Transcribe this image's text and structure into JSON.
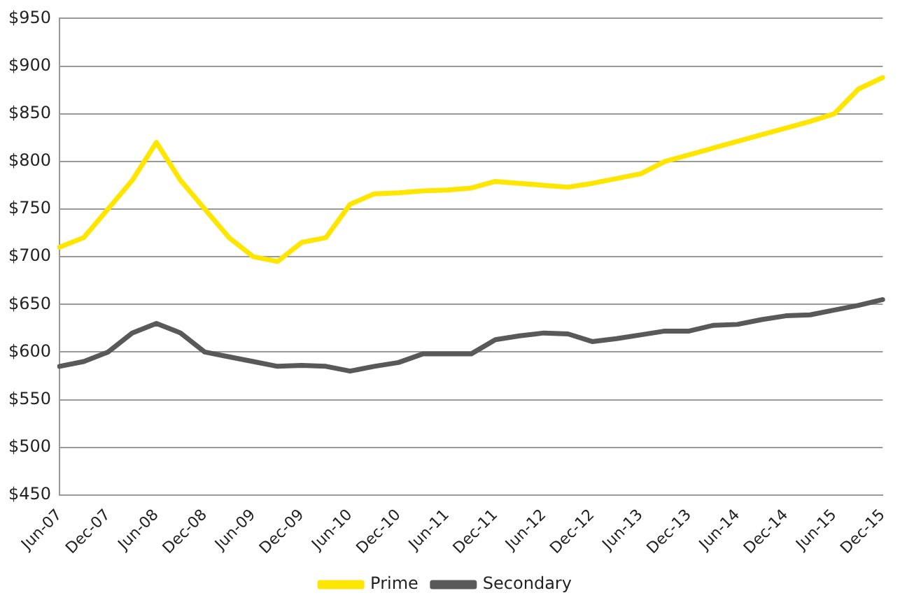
{
  "chart_data": {
    "type": "line",
    "categories": [
      "Jun-07",
      null,
      "Dec-07",
      null,
      "Jun-08",
      null,
      "Dec-08",
      null,
      "Jun-09",
      null,
      "Dec-09",
      null,
      "Jun-10",
      null,
      "Dec-10",
      null,
      "Jun-11",
      null,
      "Dec-11",
      null,
      "Jun-12",
      null,
      "Dec-12",
      null,
      "Jun-13",
      null,
      "Dec-13",
      null,
      "Jun-14",
      null,
      "Dec-14",
      null,
      "Jun-15",
      null,
      "Dec-15"
    ],
    "series": [
      {
        "name": "Prime",
        "color": "#ffe600",
        "values": [
          710,
          720,
          750,
          780,
          820,
          780,
          750,
          720,
          700,
          695,
          715,
          720,
          755,
          766,
          767,
          769,
          770,
          772,
          779,
          777,
          775,
          773,
          777,
          782,
          787,
          800,
          807,
          814,
          821,
          828,
          835,
          842,
          850,
          876,
          888
        ]
      },
      {
        "name": "Secondary",
        "color": "#595959",
        "values": [
          585,
          590,
          600,
          620,
          630,
          620,
          600,
          595,
          590,
          585,
          586,
          585,
          580,
          585,
          589,
          598,
          598,
          598,
          613,
          617,
          620,
          619,
          611,
          614,
          618,
          622,
          622,
          628,
          629,
          634,
          638,
          639,
          644,
          649,
          655
        ]
      }
    ],
    "ylim": [
      450,
      950
    ],
    "yticks": [
      {
        "value": 450,
        "label": "$450"
      },
      {
        "value": 500,
        "label": "$500"
      },
      {
        "value": 550,
        "label": "$550"
      },
      {
        "value": 600,
        "label": "$600"
      },
      {
        "value": 650,
        "label": "$650"
      },
      {
        "value": 700,
        "label": "$700"
      },
      {
        "value": 750,
        "label": "$750"
      },
      {
        "value": 800,
        "label": "$800"
      },
      {
        "value": 850,
        "label": "$850"
      },
      {
        "value": 900,
        "label": "$900"
      },
      {
        "value": 950,
        "label": "$950"
      }
    ],
    "grid": "y",
    "legend": "bottom",
    "marker": "none",
    "line_style": "solid"
  }
}
